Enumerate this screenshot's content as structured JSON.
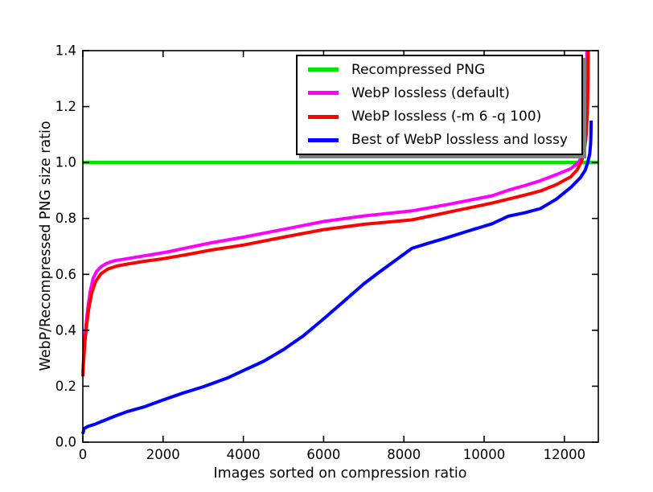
{
  "figure": {
    "background": "#ffffff",
    "axis_color": "#000000",
    "legend_shadow_color": "#7f7f7f"
  },
  "chart_data": {
    "type": "line",
    "title": "",
    "xlabel": "Images sorted on compression ratio",
    "ylabel": "WebP/Recompressed PNG size ratio",
    "xlim": [
      0,
      12845
    ],
    "ylim": [
      0,
      1.4
    ],
    "x_ticks": [
      0,
      2000,
      4000,
      6000,
      8000,
      10000,
      12000
    ],
    "y_ticks": [
      0.0,
      0.2,
      0.4,
      0.6,
      0.8,
      1.0,
      1.2,
      1.4
    ],
    "y_tick_labels": [
      "0.0",
      "0.2",
      "0.4",
      "0.6",
      "0.8",
      "1.0",
      "1.2",
      "1.4"
    ],
    "grid": false,
    "legend": {
      "position": "upper right inside",
      "shadow": true
    },
    "series": [
      {
        "name": "Recompressed PNG",
        "color": "#00E400",
        "width": 4.5,
        "points": [
          [
            0,
            1.0
          ],
          [
            12845,
            1.0
          ]
        ]
      },
      {
        "name": "WebP lossless (default)",
        "color": "#FF00FF",
        "width": 4,
        "points": [
          [
            0,
            0.25
          ],
          [
            20,
            0.3
          ],
          [
            45,
            0.36
          ],
          [
            80,
            0.42
          ],
          [
            125,
            0.48
          ],
          [
            185,
            0.54
          ],
          [
            255,
            0.585
          ],
          [
            340,
            0.61
          ],
          [
            450,
            0.627
          ],
          [
            600,
            0.64
          ],
          [
            800,
            0.649
          ],
          [
            1050,
            0.655
          ],
          [
            1350,
            0.662
          ],
          [
            1700,
            0.67
          ],
          [
            2100,
            0.68
          ],
          [
            2600,
            0.695
          ],
          [
            3200,
            0.713
          ],
          [
            4000,
            0.733
          ],
          [
            5000,
            0.761
          ],
          [
            6000,
            0.789
          ],
          [
            7000,
            0.809
          ],
          [
            8200,
            0.827
          ],
          [
            9100,
            0.85
          ],
          [
            10200,
            0.881
          ],
          [
            10600,
            0.901
          ],
          [
            11000,
            0.917
          ],
          [
            11400,
            0.935
          ],
          [
            11800,
            0.957
          ],
          [
            12160,
            0.978
          ],
          [
            12350,
            1.0
          ],
          [
            12440,
            1.025
          ],
          [
            12500,
            1.065
          ],
          [
            12530,
            1.12
          ],
          [
            12550,
            1.22
          ],
          [
            12560,
            1.4
          ]
        ]
      },
      {
        "name": "WebP lossless (-m 6 -q 100)",
        "color": "#FF0000",
        "width": 4,
        "points": [
          [
            0,
            0.235
          ],
          [
            25,
            0.3
          ],
          [
            55,
            0.36
          ],
          [
            95,
            0.42
          ],
          [
            150,
            0.48
          ],
          [
            225,
            0.535
          ],
          [
            320,
            0.575
          ],
          [
            450,
            0.602
          ],
          [
            620,
            0.619
          ],
          [
            850,
            0.63
          ],
          [
            1150,
            0.638
          ],
          [
            1550,
            0.647
          ],
          [
            2000,
            0.656
          ],
          [
            2600,
            0.671
          ],
          [
            3200,
            0.687
          ],
          [
            4000,
            0.705
          ],
          [
            5000,
            0.733
          ],
          [
            6000,
            0.76
          ],
          [
            7000,
            0.779
          ],
          [
            8200,
            0.795
          ],
          [
            9100,
            0.822
          ],
          [
            10200,
            0.855
          ],
          [
            10600,
            0.869
          ],
          [
            11000,
            0.883
          ],
          [
            11400,
            0.898
          ],
          [
            11800,
            0.921
          ],
          [
            12160,
            0.949
          ],
          [
            12320,
            0.974
          ],
          [
            12430,
            1.005
          ],
          [
            12500,
            1.045
          ],
          [
            12545,
            1.1
          ],
          [
            12575,
            1.18
          ],
          [
            12590,
            1.3
          ],
          [
            12595,
            1.4
          ]
        ]
      },
      {
        "name": "Best of WebP lossless and lossy",
        "color": "#0000FF",
        "width": 4,
        "points": [
          [
            0,
            0.03
          ],
          [
            30,
            0.048
          ],
          [
            120,
            0.056
          ],
          [
            300,
            0.064
          ],
          [
            500,
            0.076
          ],
          [
            800,
            0.093
          ],
          [
            1100,
            0.109
          ],
          [
            1550,
            0.127
          ],
          [
            2000,
            0.151
          ],
          [
            2500,
            0.176
          ],
          [
            3000,
            0.198
          ],
          [
            3600,
            0.229
          ],
          [
            4000,
            0.256
          ],
          [
            4500,
            0.289
          ],
          [
            5000,
            0.331
          ],
          [
            5500,
            0.381
          ],
          [
            6000,
            0.441
          ],
          [
            6500,
            0.503
          ],
          [
            7000,
            0.566
          ],
          [
            7350,
            0.604
          ],
          [
            7800,
            0.651
          ],
          [
            8200,
            0.693
          ],
          [
            8600,
            0.711
          ],
          [
            9000,
            0.728
          ],
          [
            9600,
            0.755
          ],
          [
            10200,
            0.781
          ],
          [
            10600,
            0.808
          ],
          [
            11000,
            0.82
          ],
          [
            11400,
            0.835
          ],
          [
            11800,
            0.869
          ],
          [
            12160,
            0.911
          ],
          [
            12400,
            0.946
          ],
          [
            12520,
            0.973
          ],
          [
            12580,
            1.0
          ],
          [
            12630,
            1.03
          ],
          [
            12655,
            1.07
          ],
          [
            12663,
            1.11
          ],
          [
            12666,
            1.15
          ]
        ]
      }
    ]
  }
}
